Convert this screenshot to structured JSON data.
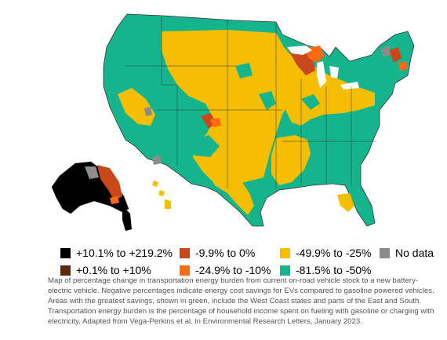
{
  "colors": {
    "green": "#14b58c",
    "yellow": "#f6be00",
    "orange": "#ff6a13",
    "rust": "#c9471a",
    "brown": "#5a2a0c",
    "black": "#000000",
    "gray": "#8c8c8c",
    "border": "#333333"
  },
  "legend": {
    "items": [
      {
        "label": "+10.1% to +219.2%",
        "color": "#000000"
      },
      {
        "label": "+0.1% to +10%",
        "color": "#5a2a0c"
      },
      {
        "label": "-9.9% to 0%",
        "color": "#c9471a"
      },
      {
        "label": "-24.9% to -10%",
        "color": "#ff6a13"
      },
      {
        "label": "-49.9% to -25%",
        "color": "#f6be00"
      },
      {
        "label": "-81.5% to -50%",
        "color": "#14b58c"
      },
      {
        "label": "No data",
        "color": "#8c8c8c"
      }
    ]
  },
  "caption": "Map of percentage change in transportation energy burden from current on-road vehicle stock to a new battery-electric vehicle. Negative percentages indicate energy cost savings for EVs compared to gasoline powered vehicles. Areas with the greatest savings, shown in green, include the West Coast states and parts of the East and South. Transportation energy burden is the percentage of household income spent on fueling with gasoline or charging with electricity. Adapted from Vega-Perkins et al. in Environmental Research Letters, January 2023."
}
